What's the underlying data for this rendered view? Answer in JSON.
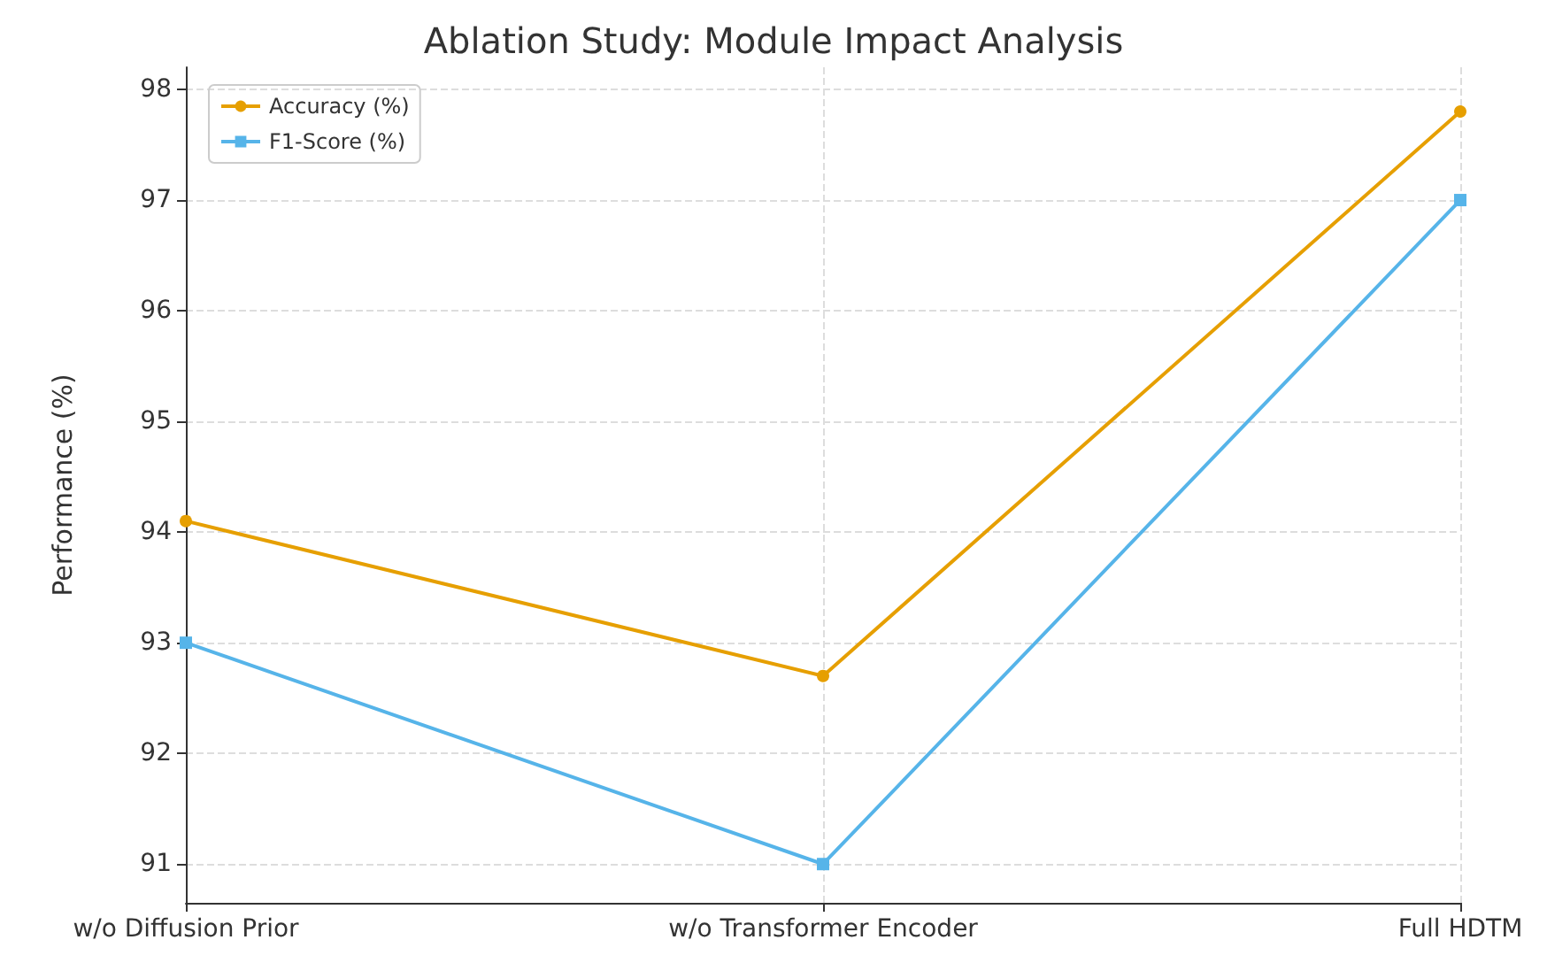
{
  "chart_data": {
    "type": "line",
    "title": "Ablation Study: Module Impact Analysis",
    "ylabel": "Performance (%)",
    "categories": [
      "w/o Diffusion Prior",
      "w/o Transformer Encoder",
      "Full HDTM"
    ],
    "series": [
      {
        "name": "Accuracy (%)",
        "color": "#e69f00",
        "values": [
          94.1,
          92.7,
          97.8
        ],
        "marker": "circle"
      },
      {
        "name": "F1-Score (%)",
        "color": "#56b4e9",
        "values": [
          93.0,
          91.0,
          97.0
        ],
        "marker": "square"
      }
    ],
    "ylim": [
      90.65,
      98.2
    ],
    "yticks": [
      91,
      92,
      93,
      94,
      95,
      96,
      97,
      98
    ],
    "grid": true,
    "legend": "top left",
    "line_style": "solid"
  }
}
